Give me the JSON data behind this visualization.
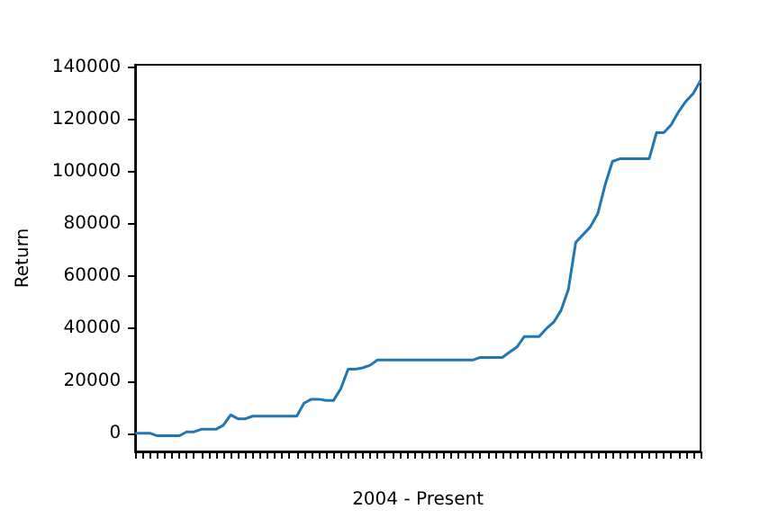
{
  "chart_data": {
    "type": "line",
    "xlabel": "2004 - Present",
    "ylabel": "Return",
    "categories": [
      null,
      null,
      null,
      null,
      null,
      null,
      null,
      null,
      null,
      null,
      null,
      null,
      null,
      null,
      null,
      null,
      null,
      null,
      null,
      null,
      null,
      null,
      null,
      null,
      null,
      null,
      null,
      null,
      null,
      null,
      null,
      null,
      null,
      null,
      null,
      null,
      null,
      null,
      null,
      null,
      null,
      null,
      null,
      null,
      null,
      null,
      null,
      null,
      null,
      null,
      null,
      null,
      null,
      null,
      null,
      null,
      null,
      null,
      null,
      null,
      null,
      null,
      null,
      null,
      null,
      null,
      null,
      null,
      null,
      null,
      null,
      null,
      null,
      null,
      null,
      null,
      null,
      null
    ],
    "series": [
      {
        "color": "#1f77b4",
        "values": [
          0,
          0,
          0,
          -1000,
          -1000,
          -1000,
          -1000,
          500,
          500,
          1500,
          1500,
          1500,
          3000,
          7000,
          5500,
          5500,
          6500,
          6500,
          6500,
          6500,
          6500,
          6500,
          6500,
          11500,
          13000,
          13000,
          12500,
          12500,
          17000,
          24500,
          24500,
          25000,
          26000,
          28000,
          28000,
          28000,
          28000,
          28000,
          28000,
          28000,
          28000,
          28000,
          28000,
          28000,
          28000,
          28000,
          28000,
          29000,
          29000,
          29000,
          29000,
          31000,
          33000,
          37000,
          37000,
          37000,
          40000,
          42500,
          47000,
          55000,
          73000,
          76000,
          79000,
          84000,
          95000,
          104000,
          105000,
          105000,
          105000,
          105000,
          105000,
          115000,
          115000,
          118000,
          123000,
          127000,
          130000,
          135000
        ]
      }
    ],
    "ylim": [
      -7000,
      141000
    ],
    "yticks": [
      0,
      20000,
      40000,
      60000,
      80000,
      100000,
      120000,
      140000
    ],
    "tick_labels": "y",
    "line_style": "solid"
  }
}
